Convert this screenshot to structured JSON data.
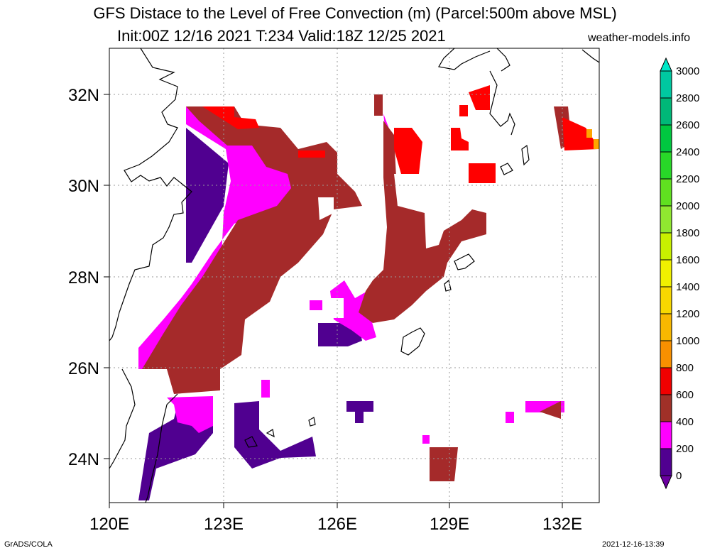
{
  "title_line1": "GFS Distace to the Level of Free Convection (m) (Parcel:500m above MSL)",
  "title_line2": "Init:00Z 12/16 2021 T:234 Valid:18Z 12/25 2021",
  "site": "weather-models.info",
  "footer_left": "GrADS/COLA",
  "footer_right": "2021-12-16-13:39",
  "lon_ticks": [
    "120E",
    "123E",
    "126E",
    "129E",
    "132E"
  ],
  "lat_ticks": [
    "32N",
    "30N",
    "28N",
    "26N",
    "24N"
  ],
  "colorbar": {
    "labels": [
      "3000",
      "2800",
      "2600",
      "2400",
      "2200",
      "2000",
      "1800",
      "1600",
      "1400",
      "1200",
      "1000",
      "800",
      "600",
      "400",
      "200",
      "0"
    ],
    "colors": [
      "#00e8c8",
      "#00c8a0",
      "#00b878",
      "#00c840",
      "#28d828",
      "#60e020",
      "#90e830",
      "#c8f000",
      "#f0f000",
      "#f8d800",
      "#f8b800",
      "#f89000",
      "#f00000",
      "#a03028",
      "#ff00ff",
      "#500090",
      "#6b00a0"
    ]
  },
  "colors": {
    "lfc_0_200": "#500090",
    "lfc_200_400": "#ff00ff",
    "lfc_400_600": "#a52a2a",
    "lfc_600_800": "#ff0000",
    "coastline": "#000000",
    "grid": "#999999"
  }
}
